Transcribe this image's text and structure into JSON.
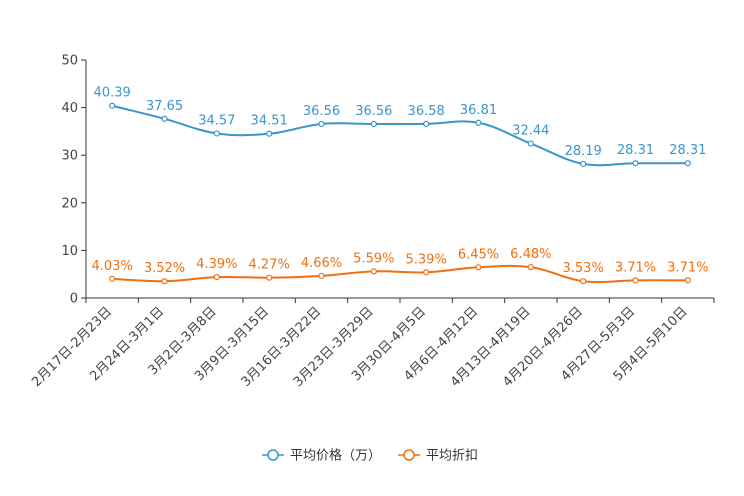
{
  "chart_data": {
    "type": "line",
    "categories": [
      "2月17日-2月23日",
      "2月24日-3月1日",
      "3月2日-3月8日",
      "3月9日-3月15日",
      "3月16日-3月22日",
      "3月23日-3月29日",
      "3月30日-4月5日",
      "4月6日-4月12日",
      "4月13日-4月19日",
      "4月20日-4月26日",
      "4月27日-5月3日",
      "5月4日-5月10日"
    ],
    "ylim": [
      0,
      50
    ],
    "yticks": [
      0,
      10,
      20,
      30,
      40,
      50
    ],
    "grid": false,
    "legend_position": "bottom-center",
    "series": [
      {
        "name": "平均价格（万）",
        "color": "#3a96cc",
        "values": [
          40.39,
          37.65,
          34.57,
          34.51,
          36.56,
          36.56,
          36.58,
          36.81,
          32.44,
          28.19,
          28.31,
          28.31
        ],
        "labels": [
          "40.39",
          "37.65",
          "34.57",
          "34.51",
          "36.56",
          "36.56",
          "36.58",
          "36.81",
          "32.44",
          "28.19",
          "28.31",
          "28.31"
        ]
      },
      {
        "name": "平均折扣",
        "color": "#f26f0f",
        "values": [
          4.03,
          3.52,
          4.39,
          4.27,
          4.66,
          5.59,
          5.39,
          6.45,
          6.48,
          3.53,
          3.71,
          3.71
        ],
        "labels": [
          "4.03%",
          "3.52%",
          "4.39%",
          "4.27%",
          "4.66%",
          "5.59%",
          "5.39%",
          "6.45%",
          "6.48%",
          "3.53%",
          "3.71%",
          "3.71%"
        ]
      }
    ]
  }
}
